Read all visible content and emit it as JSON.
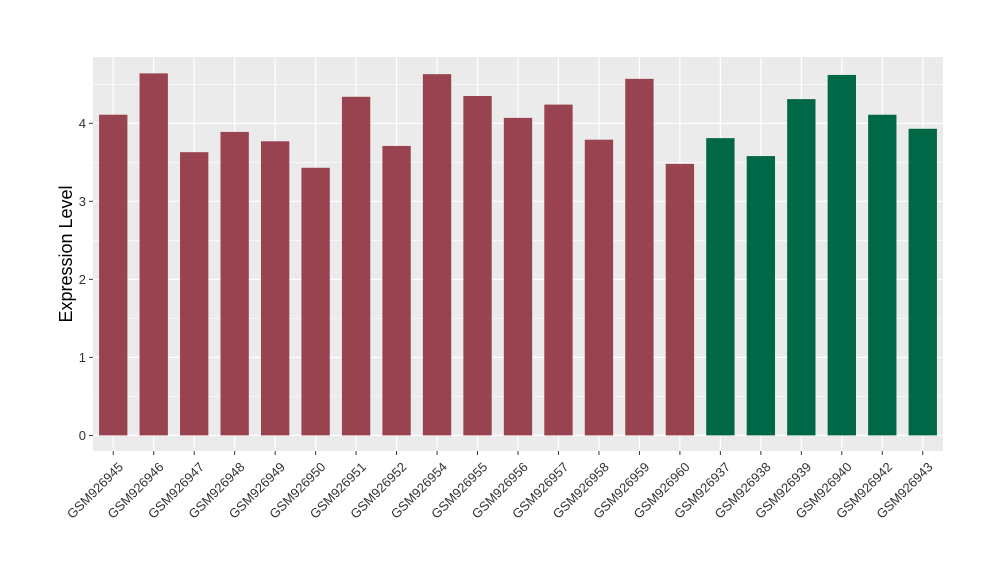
{
  "chart_data": {
    "type": "bar",
    "title": "",
    "xlabel": "",
    "ylabel": "Expression Level",
    "ylim": [
      -0.2,
      4.85
    ],
    "yticks": [
      0,
      1,
      2,
      3,
      4
    ],
    "grid": true,
    "categories": [
      "GSM926945",
      "GSM926946",
      "GSM926947",
      "GSM926948",
      "GSM926949",
      "GSM926950",
      "GSM926951",
      "GSM926952",
      "GSM926954",
      "GSM926955",
      "GSM926956",
      "GSM926957",
      "GSM926958",
      "GSM926959",
      "GSM926960",
      "GSM926937",
      "GSM926938",
      "GSM926939",
      "GSM926940",
      "GSM926942",
      "GSM926943"
    ],
    "values": [
      4.11,
      4.64,
      3.63,
      3.89,
      3.77,
      3.43,
      4.34,
      3.71,
      4.63,
      4.35,
      4.07,
      4.24,
      3.79,
      4.57,
      3.48,
      3.81,
      3.58,
      4.31,
      4.62,
      4.11,
      3.93
    ],
    "groups": [
      "a",
      "a",
      "a",
      "a",
      "a",
      "a",
      "a",
      "a",
      "a",
      "a",
      "a",
      "a",
      "a",
      "a",
      "a",
      "b",
      "b",
      "b",
      "b",
      "b",
      "b"
    ],
    "group_colors": {
      "a": "#9a4350",
      "b": "#006747"
    },
    "panel_background": "#ebebeb",
    "grid_color": "#ffffff"
  }
}
